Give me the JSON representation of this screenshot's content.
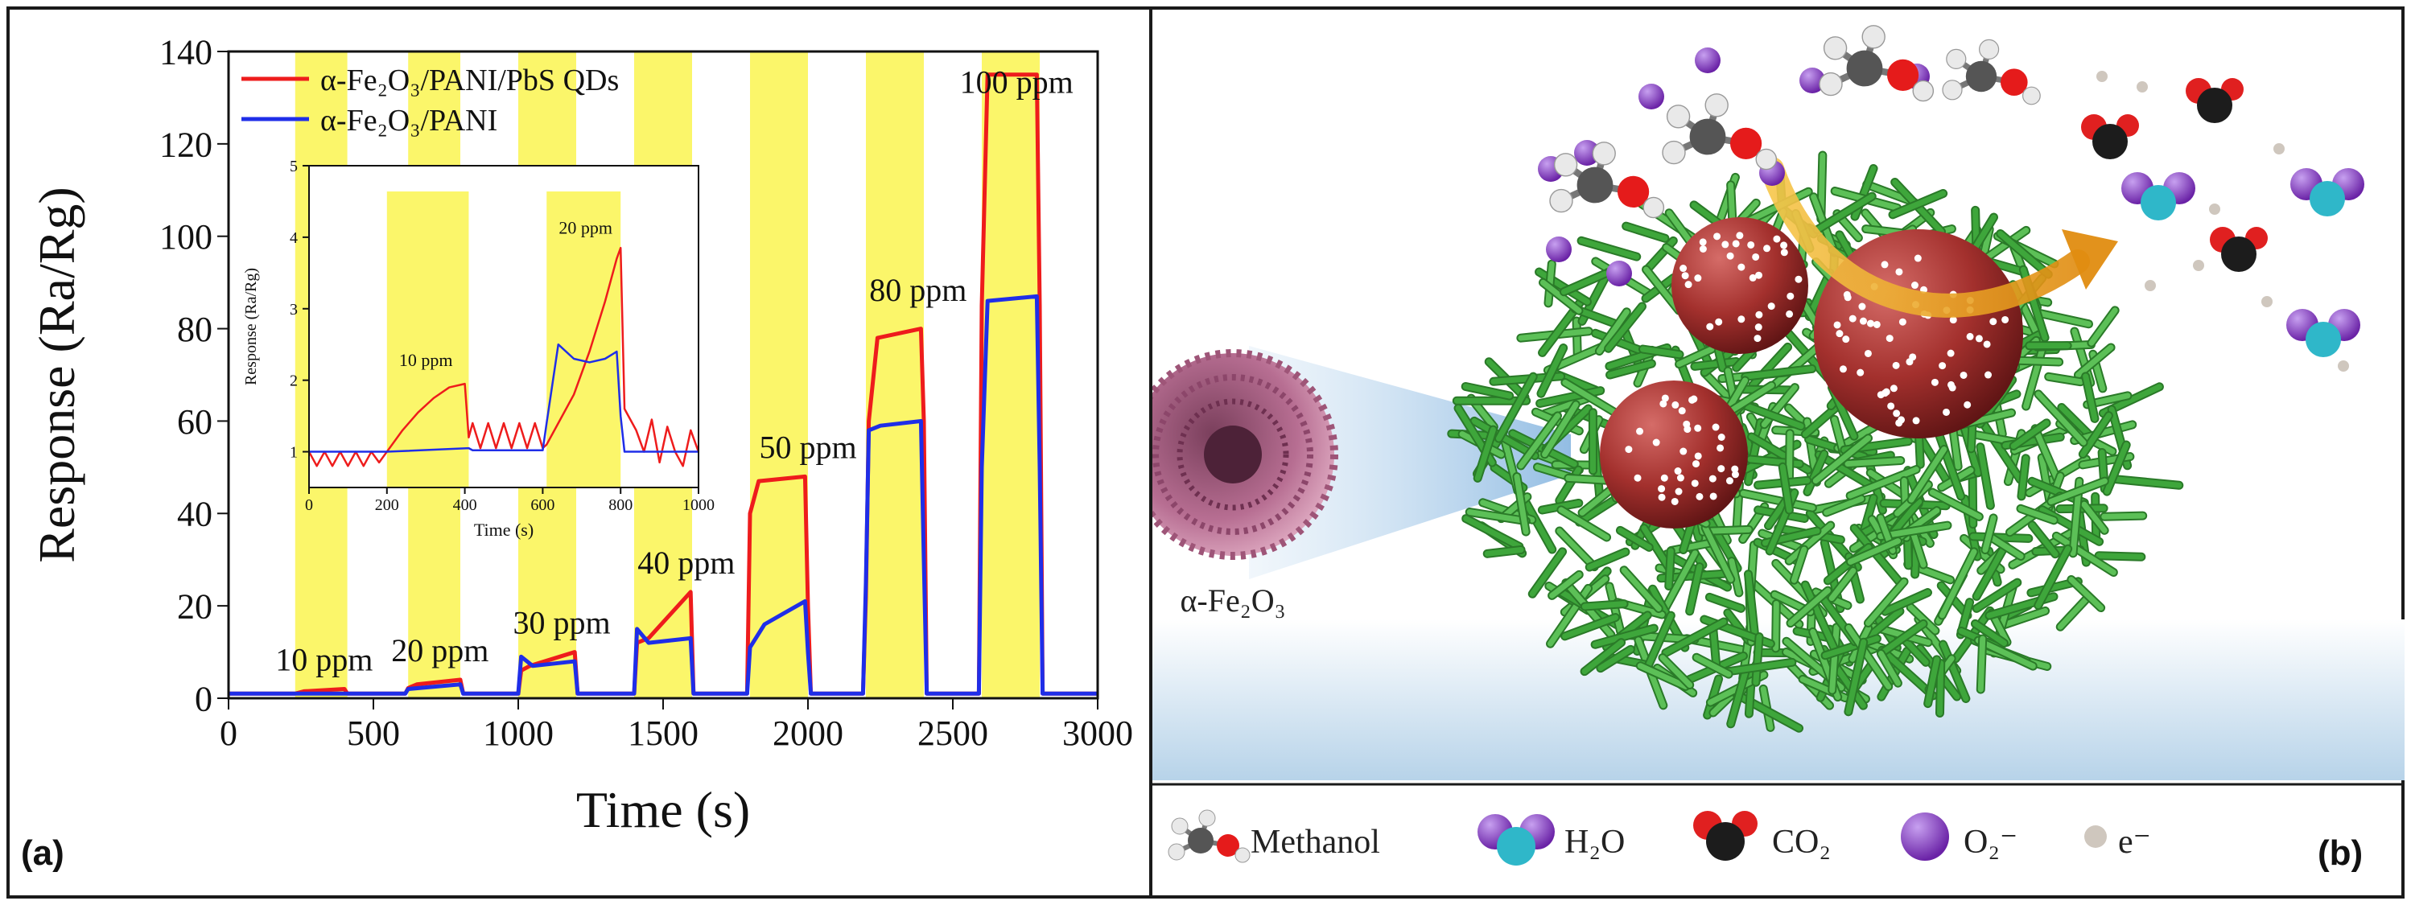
{
  "panel_a": {
    "tag": "(a)",
    "chart_data": {
      "type": "line",
      "xlabel": "Time (s)",
      "ylabel": "Response (Ra/Rg)",
      "xlim": [
        0,
        3000
      ],
      "ylim": [
        0,
        140
      ],
      "xticks": [
        0,
        500,
        1000,
        1500,
        2000,
        2500,
        3000
      ],
      "yticks": [
        0,
        20,
        40,
        60,
        80,
        100,
        120,
        140
      ],
      "legend_position": "top-left",
      "highlight_regions": [
        [
          230,
          410
        ],
        [
          620,
          800
        ],
        [
          1000,
          1200
        ],
        [
          1400,
          1600
        ],
        [
          1800,
          2000
        ],
        [
          2200,
          2400
        ],
        [
          2600,
          2800
        ]
      ],
      "annotations": [
        {
          "text": "10 ppm",
          "x": 330,
          "y": 6
        },
        {
          "text": "20 ppm",
          "x": 730,
          "y": 8
        },
        {
          "text": "30 ppm",
          "x": 1150,
          "y": 14
        },
        {
          "text": "40 ppm",
          "x": 1580,
          "y": 27
        },
        {
          "text": "50 ppm",
          "x": 2000,
          "y": 52
        },
        {
          "text": "80 ppm",
          "x": 2380,
          "y": 86
        },
        {
          "text": "100 ppm",
          "x": 2720,
          "y": 131
        }
      ],
      "series": [
        {
          "name": "α-Fe₂O₃/PANI/PbS QDs",
          "color": "#ee1c1c",
          "x": [
            0,
            230,
            260,
            400,
            410,
            610,
            620,
            650,
            800,
            810,
            1000,
            1010,
            1040,
            1195,
            1205,
            1400,
            1410,
            1450,
            1595,
            1605,
            1790,
            1800,
            1830,
            1990,
            2000,
            2010,
            2190,
            2200,
            2210,
            2240,
            2390,
            2400,
            2410,
            2590,
            2600,
            2620,
            2790,
            2800,
            2810,
            3000
          ],
          "y": [
            1,
            1,
            1.5,
            2,
            1,
            1,
            2.2,
            3,
            4,
            1,
            1,
            6,
            7,
            10,
            1,
            1,
            12,
            13,
            23,
            1,
            1,
            40,
            47,
            48,
            20,
            1,
            1,
            22,
            60,
            78,
            80,
            60,
            1,
            1,
            85,
            135,
            135,
            85,
            1,
            1
          ]
        },
        {
          "name": "α-Fe₂O₃/PANI",
          "color": "#1f2ee8",
          "x": [
            0,
            230,
            400,
            410,
            610,
            620,
            800,
            810,
            1000,
            1010,
            1050,
            1195,
            1205,
            1400,
            1410,
            1450,
            1595,
            1605,
            1790,
            1800,
            1850,
            1990,
            2000,
            2010,
            2190,
            2200,
            2210,
            2250,
            2390,
            2400,
            2410,
            2590,
            2600,
            2620,
            2790,
            2800,
            2810,
            3000
          ],
          "y": [
            1,
            1,
            1,
            1,
            1,
            2,
            3,
            1,
            1,
            9,
            7,
            8,
            1,
            1,
            15,
            12,
            13,
            1,
            1,
            11,
            16,
            21,
            10,
            1,
            1,
            25,
            58,
            59,
            60,
            30,
            1,
            1,
            50,
            86,
            87,
            50,
            1,
            1
          ]
        }
      ]
    },
    "inset_chart_data": {
      "type": "line",
      "xlabel": "Time (s)",
      "ylabel": "Response (Ra/Rg)",
      "xlim": [
        0,
        1000
      ],
      "ylim": [
        0.5,
        5
      ],
      "xticks": [
        0,
        200,
        400,
        600,
        800,
        1000
      ],
      "yticks": [
        1,
        2,
        3,
        4,
        5
      ],
      "highlight_regions": [
        [
          200,
          410
        ],
        [
          610,
          800
        ]
      ],
      "annotations": [
        {
          "text": "10 ppm",
          "x": 300,
          "y": 2.2
        },
        {
          "text": "20 ppm",
          "x": 710,
          "y": 4.05
        }
      ],
      "series": [
        {
          "name": "α-Fe₂O₃/PANI/PbS QDs",
          "color": "#ee1c1c",
          "x": [
            0,
            20,
            40,
            60,
            80,
            100,
            120,
            140,
            160,
            180,
            200,
            240,
            280,
            320,
            360,
            400,
            410,
            420,
            440,
            460,
            480,
            500,
            520,
            540,
            560,
            580,
            600,
            610,
            640,
            680,
            720,
            760,
            790,
            800,
            810,
            840,
            860,
            880,
            900,
            920,
            940,
            960,
            980,
            1000
          ],
          "y": [
            1,
            0.8,
            1,
            0.8,
            1,
            0.8,
            1,
            0.8,
            1,
            0.85,
            1,
            1.3,
            1.55,
            1.75,
            1.9,
            1.95,
            1.2,
            1.4,
            1.05,
            1.4,
            1.05,
            1.4,
            1.05,
            1.4,
            1.05,
            1.4,
            1.05,
            1.1,
            1.4,
            1.8,
            2.4,
            3.1,
            3.7,
            3.85,
            1.6,
            1.3,
            1.0,
            1.45,
            0.85,
            1.35,
            1.0,
            0.8,
            1.3,
            1.0
          ]
        },
        {
          "name": "α-Fe₂O₃/PANI",
          "color": "#1f2ee8",
          "x": [
            0,
            200,
            410,
            420,
            600,
            610,
            640,
            680,
            720,
            760,
            790,
            800,
            810,
            1000
          ],
          "y": [
            1,
            1,
            1.05,
            1.02,
            1.02,
            1.4,
            2.5,
            2.3,
            2.25,
            2.3,
            2.4,
            1.5,
            1.0,
            1.0
          ]
        }
      ]
    }
  },
  "panel_b": {
    "tag": "(b)",
    "core_label": "α-Fe₂O₃",
    "legend": [
      {
        "icon": "methanol-molecule-icon",
        "label": "Methanol"
      },
      {
        "icon": "water-molecule-icon",
        "label": "H₂O"
      },
      {
        "icon": "co2-molecule-icon",
        "label": "CO₂"
      },
      {
        "icon": "superoxide-ion-icon",
        "label": "O₂⁻"
      },
      {
        "icon": "electron-icon",
        "label": "e⁻"
      }
    ],
    "colors": {
      "pani_network": "#3ea63b",
      "pbs_qd": "#9b2a28",
      "fe2o3": "#c98aa8",
      "superoxide": "#8a3fc1",
      "arrow": "#e8a21a"
    }
  }
}
